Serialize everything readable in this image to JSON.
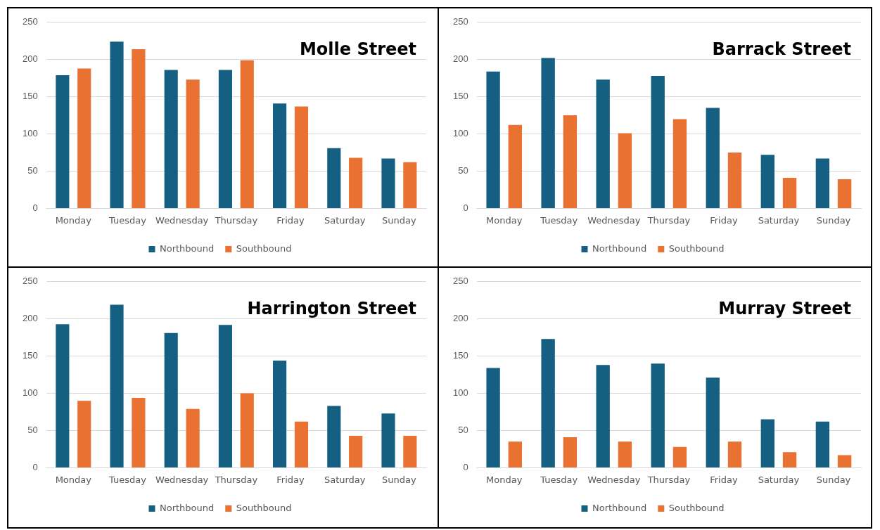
{
  "chart_data": [
    {
      "type": "bar",
      "title": "Molle Street",
      "categories": [
        "Monday",
        "Tuesday",
        "Wednesday",
        "Thursday",
        "Friday",
        "Saturday",
        "Sunday"
      ],
      "series": [
        {
          "name": "Northbound",
          "color": "#156082",
          "values": [
            179,
            224,
            186,
            186,
            141,
            81,
            67
          ]
        },
        {
          "name": "Southbound",
          "color": "#e97132",
          "values": [
            188,
            214,
            173,
            199,
            137,
            68,
            62
          ]
        }
      ],
      "ylim": [
        0,
        250
      ],
      "yticks": [
        0,
        50,
        100,
        150,
        200,
        250
      ],
      "grid": "y",
      "legend": "bottom"
    },
    {
      "type": "bar",
      "title": "Barrack Street",
      "categories": [
        "Monday",
        "Tuesday",
        "Wednesday",
        "Thursday",
        "Friday",
        "Saturday",
        "Sunday"
      ],
      "series": [
        {
          "name": "Northbound",
          "color": "#156082",
          "values": [
            184,
            202,
            173,
            178,
            135,
            72,
            67
          ]
        },
        {
          "name": "Southbound",
          "color": "#e97132",
          "values": [
            112,
            125,
            101,
            120,
            75,
            41,
            39
          ]
        }
      ],
      "ylim": [
        0,
        250
      ],
      "yticks": [
        0,
        50,
        100,
        150,
        200,
        250
      ],
      "grid": "y",
      "legend": "bottom"
    },
    {
      "type": "bar",
      "title": "Harrington Street",
      "categories": [
        "Monday",
        "Tuesday",
        "Wednesday",
        "Thursday",
        "Friday",
        "Saturday",
        "Sunday"
      ],
      "series": [
        {
          "name": "Northbound",
          "color": "#156082",
          "values": [
            193,
            219,
            181,
            192,
            144,
            83,
            73
          ]
        },
        {
          "name": "Southbound",
          "color": "#e97132",
          "values": [
            90,
            94,
            79,
            100,
            62,
            43,
            43
          ]
        }
      ],
      "ylim": [
        0,
        250
      ],
      "yticks": [
        0,
        50,
        100,
        150,
        200,
        250
      ],
      "grid": "y",
      "legend": "bottom"
    },
    {
      "type": "bar",
      "title": "Murray Street",
      "categories": [
        "Monday",
        "Tuesday",
        "Wednesday",
        "Thursday",
        "Friday",
        "Saturday",
        "Sunday"
      ],
      "series": [
        {
          "name": "Northbound",
          "color": "#156082",
          "values": [
            134,
            173,
            138,
            140,
            121,
            65,
            62
          ]
        },
        {
          "name": "Southbound",
          "color": "#e97132",
          "values": [
            35,
            41,
            35,
            28,
            35,
            21,
            17
          ]
        }
      ],
      "ylim": [
        0,
        250
      ],
      "yticks": [
        0,
        50,
        100,
        150,
        200,
        250
      ],
      "grid": "y",
      "legend": "bottom"
    }
  ]
}
